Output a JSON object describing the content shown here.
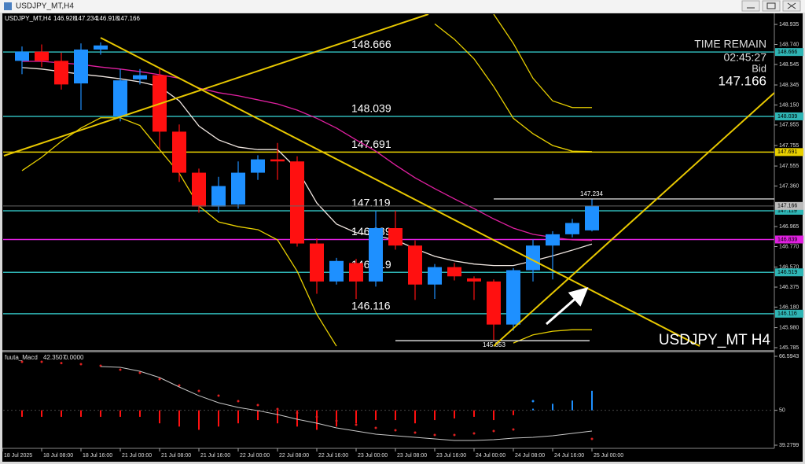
{
  "window": {
    "title": "USDJPY_MT,H4"
  },
  "chart": {
    "symbol": "USDJPY_MT,H4",
    "watermark": "USDJPY_MT H4",
    "timer": {
      "label": "TIME REMAIN",
      "value": "02:45:27",
      "bid_label": "Bid"
    },
    "ylim": [
      145.762,
      149.035
    ],
    "price_ticks": [
      148.935,
      {
        "value": 148.74,
        "label": "148.740"
      },
      148.545,
      148.345,
      {
        "value": 148.15,
        "label": "148.150"
      },
      147.955,
      147.755,
      147.555,
      {
        "value": 147.36,
        "label": "147.360"
      },
      146.965,
      {
        "value": 146.77,
        "label": "146.770"
      },
      {
        "value": 146.57,
        "label": "146.570"
      },
      146.375,
      {
        "value": 146.18,
        "label": "146.180"
      },
      {
        "value": 145.98,
        "label": "145.980"
      },
      145.785
    ],
    "levels": [
      {
        "value": 148.666,
        "color": "#2fb5b5"
      },
      {
        "value": 148.039,
        "color": "#2fb5b5"
      },
      {
        "value": 147.691,
        "color": "#e8d000"
      },
      {
        "value": 147.119,
        "color": "#2fb5b5"
      },
      {
        "value": 146.839,
        "color": "#e020e0"
      },
      {
        "value": 146.519,
        "color": "#2fb5b5"
      },
      {
        "value": 146.116,
        "color": "#2fb5b5"
      }
    ],
    "bull_color": "#1e90ff",
    "bear_color": "#ff1010",
    "candles": [
      {
        "open": 148.58,
        "high": 148.72,
        "low": 148.45,
        "close": 148.67
      },
      {
        "open": 148.67,
        "high": 148.74,
        "low": 148.52,
        "close": 148.58
      },
      {
        "open": 148.58,
        "high": 148.66,
        "low": 148.3,
        "close": 148.35
      },
      {
        "open": 148.36,
        "high": 148.75,
        "low": 148.1,
        "close": 148.69
      },
      {
        "open": 148.69,
        "high": 148.76,
        "low": 148.64,
        "close": 148.73
      },
      {
        "open": 148.04,
        "high": 148.5,
        "low": 147.99,
        "close": 148.39
      },
      {
        "open": 148.4,
        "high": 148.5,
        "low": 148.35,
        "close": 148.44
      },
      {
        "open": 148.44,
        "high": 148.5,
        "low": 147.72,
        "close": 147.89
      },
      {
        "open": 147.89,
        "high": 147.96,
        "low": 147.4,
        "close": 147.49
      },
      {
        "open": 147.49,
        "high": 147.53,
        "low": 147.1,
        "close": 147.16
      },
      {
        "open": 147.16,
        "high": 147.45,
        "low": 147.1,
        "close": 147.36
      },
      {
        "open": 147.18,
        "high": 147.6,
        "low": 147.14,
        "close": 147.49
      },
      {
        "open": 147.49,
        "high": 147.66,
        "low": 147.42,
        "close": 147.62
      },
      {
        "open": 147.62,
        "high": 147.78,
        "low": 147.42,
        "close": 147.6
      },
      {
        "open": 147.6,
        "high": 147.65,
        "low": 146.77,
        "close": 146.8
      },
      {
        "open": 146.8,
        "high": 146.85,
        "low": 146.31,
        "close": 146.43
      },
      {
        "open": 146.43,
        "high": 146.66,
        "low": 146.4,
        "close": 146.63
      },
      {
        "open": 146.61,
        "high": 146.65,
        "low": 146.26,
        "close": 146.43
      },
      {
        "open": 146.43,
        "high": 147.12,
        "low": 146.38,
        "close": 146.95
      },
      {
        "open": 146.95,
        "high": 147.12,
        "low": 146.74,
        "close": 146.78
      },
      {
        "open": 146.78,
        "high": 146.83,
        "low": 146.25,
        "close": 146.4
      },
      {
        "open": 146.4,
        "high": 146.6,
        "low": 146.26,
        "close": 146.57
      },
      {
        "open": 146.57,
        "high": 146.61,
        "low": 146.44,
        "close": 146.48
      },
      {
        "open": 146.46,
        "high": 146.48,
        "low": 146.25,
        "close": 146.43
      },
      {
        "open": 146.43,
        "high": 146.45,
        "low": 145.853,
        "close": 146.01
      },
      {
        "open": 146.01,
        "high": 146.56,
        "low": 145.95,
        "close": 146.54
      },
      {
        "open": 146.54,
        "high": 146.84,
        "low": 146.43,
        "close": 146.78
      },
      {
        "open": 146.78,
        "high": 146.92,
        "low": 146.45,
        "close": 146.89
      },
      {
        "open": 146.89,
        "high": 147.04,
        "low": 146.86,
        "close": 147.0
      },
      {
        "open": 146.928,
        "high": 147.234,
        "low": 146.918,
        "close": 147.166
      }
    ],
    "indicators": [
      {
        "color": "#e020a0",
        "values": [
          148.575,
          148.575,
          148.56,
          148.545,
          148.52,
          148.5,
          148.475,
          148.445,
          148.41,
          148.315,
          148.27,
          148.24,
          148.2,
          148.16,
          148.1,
          148.02,
          147.925,
          147.81,
          147.7,
          147.565,
          147.44,
          147.335,
          147.235,
          147.14,
          147.04,
          146.95,
          146.89,
          146.86,
          146.835,
          146.83
        ]
      },
      {
        "color": "#f0e6e0",
        "values": [
          148.515,
          148.5,
          148.475,
          148.45,
          148.43,
          148.405,
          148.375,
          148.33,
          148.19,
          147.945,
          147.81,
          147.74,
          147.715,
          147.715,
          147.525,
          147.195,
          146.99,
          146.905,
          146.875,
          146.835,
          146.75,
          146.675,
          146.63,
          146.6,
          146.585,
          146.585,
          146.63,
          146.68,
          146.735,
          146.795
        ]
      },
      {
        "color": "#e8d000",
        "values": [
          147.51,
          147.64,
          147.795,
          147.925,
          148.025,
          148.025,
          147.95,
          147.715,
          147.485,
          147.165,
          147.01,
          146.965,
          146.935,
          146.835,
          146.53,
          146.11,
          145.8,
          null,
          null,
          null,
          null,
          null,
          null,
          null,
          null,
          145.83,
          145.91,
          145.945,
          145.96,
          145.96
        ]
      },
      {
        "color": "#e8d000",
        "values": [
          null,
          null,
          null,
          null,
          null,
          null,
          null,
          null,
          null,
          null,
          null,
          null,
          null,
          null,
          null,
          null,
          null,
          null,
          null,
          null,
          null,
          148.94,
          148.79,
          148.6,
          148.33,
          148.02,
          147.87,
          147.755,
          147.7,
          147.695
        ]
      },
      {
        "color": "#e8d000",
        "values": [
          null,
          null,
          null,
          null,
          null,
          null,
          null,
          null,
          null,
          null,
          null,
          null,
          null,
          null,
          null,
          null,
          null,
          null,
          null,
          null,
          null,
          null,
          null,
          null,
          149.035,
          148.75,
          148.41,
          148.19,
          148.125,
          148.125
        ]
      }
    ],
    "time_labels": [
      "18 Jul 2025",
      "18 Jul 08:00",
      "18 Jul 16:00",
      "21 Jul 00:00",
      "21 Jul 08:00",
      "21 Jul 16:00",
      "22 Jul 00:00",
      "22 Jul 08:00",
      "22 Jul 16:00",
      "23 Jul 00:00",
      "23 Jul 08:00",
      "23 Jul 16:00",
      "24 Jul 00:00",
      "24 Jul 08:00",
      "24 Jul 16:00",
      "25 Jul 00:00"
    ]
  },
  "macd": {
    "name": "fuuta_Macd",
    "main": 42.3507,
    "signal": "0.0000",
    "ylim": [
      39.2799,
      66.5943
    ],
    "yticks": [
      66.5943,
      50,
      39.2799
    ],
    "bars": [
      48,
      48,
      48,
      48,
      48,
      48,
      48,
      46,
      45,
      44,
      45,
      46,
      47,
      46,
      45,
      44,
      45,
      46,
      47,
      47,
      46,
      47,
      47.5,
      48,
      47,
      48.5,
      50.5,
      52,
      53,
      56
    ],
    "dots": [
      64.9,
      64.9,
      64.5,
      64.18,
      63.69,
      62.48,
      61.52,
      59.58,
      57.65,
      55.96,
      54.51,
      52.82,
      51.61,
      50.4,
      49.19,
      47.98,
      46.77,
      45.56,
      44.59,
      43.87,
      43.15,
      42.42,
      42.42,
      42.9,
      43.63,
      44.11,
      52.82,
      null,
      null,
      41.2
    ],
    "line": [
      null,
      null,
      null,
      null,
      63.45,
      63.2,
      62.0,
      60.07,
      57.17,
      54.5,
      52.33,
      50.88,
      49.9,
      48.7,
      47.25,
      46.04,
      44.6,
      43.63,
      42.66,
      42.18,
      41.7,
      41.21,
      40.73,
      40.73,
      40.97,
      41.45,
      41.7,
      42.18,
      42.9,
      43.63
    ],
    "dot_color": "#e02020",
    "line_color": "#c8c8c8"
  }
}
